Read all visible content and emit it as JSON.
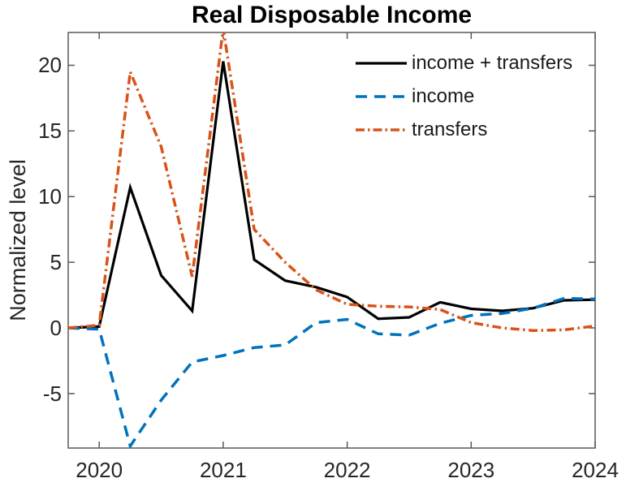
{
  "figure": {
    "title": "Real Disposable Income"
  },
  "chart_data": {
    "type": "line",
    "title": "Real Disposable Income",
    "xlabel": "",
    "ylabel": "Normalized level",
    "xlim": [
      2019.75,
      2024.0
    ],
    "ylim": [
      -9.15,
      22.5
    ],
    "x_ticks": [
      2020,
      2021,
      2022,
      2023,
      2024
    ],
    "x_tick_labels": [
      "2020",
      "2021",
      "2022",
      "2023",
      "2024"
    ],
    "y_ticks": [
      -5,
      0,
      5,
      10,
      15,
      20
    ],
    "y_tick_labels": [
      "-5",
      "0",
      "5",
      "10",
      "15",
      "20"
    ],
    "grid": false,
    "box": true,
    "legend_position": "top-right-inside-no-box",
    "x": [
      2019.75,
      2020.0,
      2020.25,
      2020.5,
      2020.75,
      2021.0,
      2021.25,
      2021.5,
      2021.75,
      2022.0,
      2022.25,
      2022.5,
      2022.75,
      2023.0,
      2023.25,
      2023.5,
      2023.75,
      2024.0
    ],
    "series": [
      {
        "name": "income + transfers",
        "color": "#000000",
        "style": "solid",
        "width": 3.2,
        "values": [
          0.0,
          0.1,
          10.7,
          4.0,
          1.3,
          20.3,
          5.2,
          3.6,
          3.1,
          2.35,
          0.7,
          0.8,
          1.95,
          1.45,
          1.3,
          1.5,
          2.1,
          2.15
        ]
      },
      {
        "name": "income",
        "color": "#0072BD",
        "style": "dashed",
        "width": 3.5,
        "values": [
          0.0,
          -0.1,
          -9.0,
          -5.5,
          -2.6,
          -2.1,
          -1.5,
          -1.3,
          0.4,
          0.65,
          -0.45,
          -0.55,
          0.35,
          0.95,
          1.1,
          1.5,
          2.25,
          2.2
        ]
      },
      {
        "name": "transfers",
        "color": "#D95319",
        "style": "dash-dot",
        "width": 3.5,
        "values": [
          0.0,
          0.2,
          19.5,
          13.8,
          3.9,
          22.8,
          7.5,
          5.0,
          2.9,
          1.8,
          1.65,
          1.6,
          1.4,
          0.4,
          0.0,
          -0.2,
          -0.15,
          0.15
        ]
      }
    ]
  }
}
